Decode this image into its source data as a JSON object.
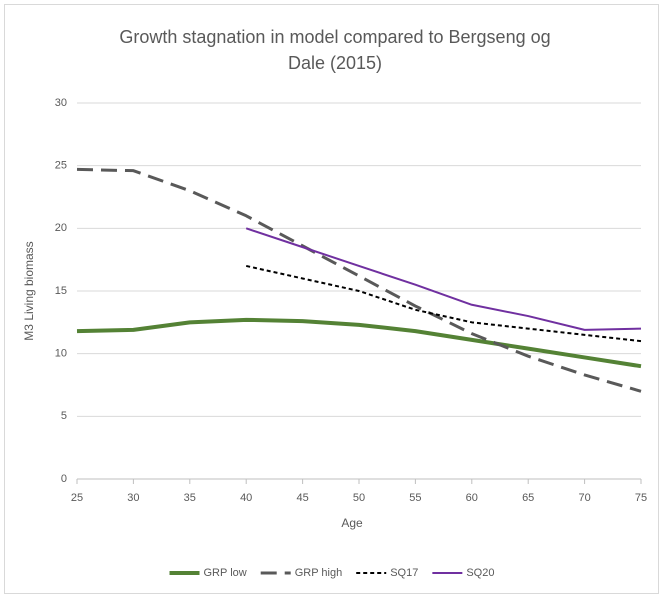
{
  "chart_data": {
    "type": "line",
    "title": "Growth stagnation in model compared to Bergseng og Dale (2015)",
    "x_label": "Age",
    "y_label": "M3 Living biomass",
    "x": [
      25,
      30,
      35,
      40,
      45,
      50,
      55,
      60,
      65,
      70,
      75
    ],
    "series": [
      {
        "name": "GRP low",
        "color": "#548235",
        "width": 4,
        "dash": "none",
        "values": [
          11.8,
          11.9,
          12.5,
          12.7,
          12.6,
          12.3,
          11.8,
          11.1,
          10.4,
          9.7,
          9.0
        ]
      },
      {
        "name": "GRP high",
        "color": "#595959",
        "width": 3,
        "dash": "16,8",
        "values": [
          24.7,
          24.6,
          23.0,
          21.0,
          18.6,
          16.2,
          13.8,
          11.6,
          9.8,
          8.3,
          7.0
        ]
      },
      {
        "name": "SQ17",
        "color": "#000000",
        "width": 2,
        "dash": "4,3",
        "values": [
          null,
          null,
          null,
          17,
          16,
          15,
          13.5,
          12.5,
          12,
          11.5,
          11
        ]
      },
      {
        "name": "SQ20",
        "color": "#7030a0",
        "width": 2,
        "dash": "none",
        "values": [
          null,
          null,
          null,
          20,
          18.5,
          17,
          15.5,
          13.9,
          13,
          11.9,
          12
        ]
      }
    ],
    "xlim": [
      25,
      75
    ],
    "xticks": [
      25,
      30,
      35,
      40,
      45,
      50,
      55,
      60,
      65,
      70,
      75
    ],
    "ylim": [
      0,
      30
    ],
    "yticks": [
      0,
      5,
      10,
      15,
      20,
      25,
      30
    ],
    "grid": true,
    "legend": "bottom"
  }
}
